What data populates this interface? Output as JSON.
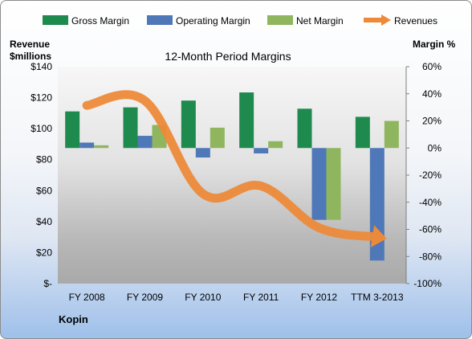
{
  "company": "Kopin",
  "colors": {
    "gross": "#1e8a4e",
    "operating": "#4f78b8",
    "net": "#8fb65e",
    "revenue": "#ed8a3a"
  },
  "chart_data": {
    "type": "bar",
    "title": "12-Month Period Margins",
    "categories": [
      "FY 2008",
      "FY 2009",
      "FY 2010",
      "FY 2011",
      "FY 2012",
      "TTM 3-2013"
    ],
    "series": [
      {
        "name": "Gross Margin",
        "axis": "right",
        "values": [
          27,
          30,
          35,
          41,
          29,
          23
        ]
      },
      {
        "name": "Operating Margin",
        "axis": "right",
        "values": [
          4,
          9,
          -7,
          -4,
          -53,
          -83
        ]
      },
      {
        "name": "Net Margin",
        "axis": "right",
        "values": [
          2,
          17,
          15,
          5,
          -53,
          20
        ]
      },
      {
        "name": "Revenues",
        "type": "line",
        "axis": "left",
        "values": [
          115,
          118,
          58,
          63,
          36,
          30
        ]
      }
    ],
    "left_axis": {
      "label_line1": "Revenue",
      "label_line2": "$millions",
      "ylim": [
        0,
        140
      ],
      "ticks": [
        "$140",
        "$120",
        "$100",
        "$80",
        "$60",
        "$40",
        "$20",
        "$-"
      ]
    },
    "right_axis": {
      "label": "Margin %",
      "ylim": [
        -100,
        60
      ],
      "ticks": [
        "60%",
        "40%",
        "20%",
        "0%",
        "-20%",
        "-40%",
        "-60%",
        "-80%",
        "-100%"
      ]
    },
    "legend_position": "top",
    "grid": false
  }
}
